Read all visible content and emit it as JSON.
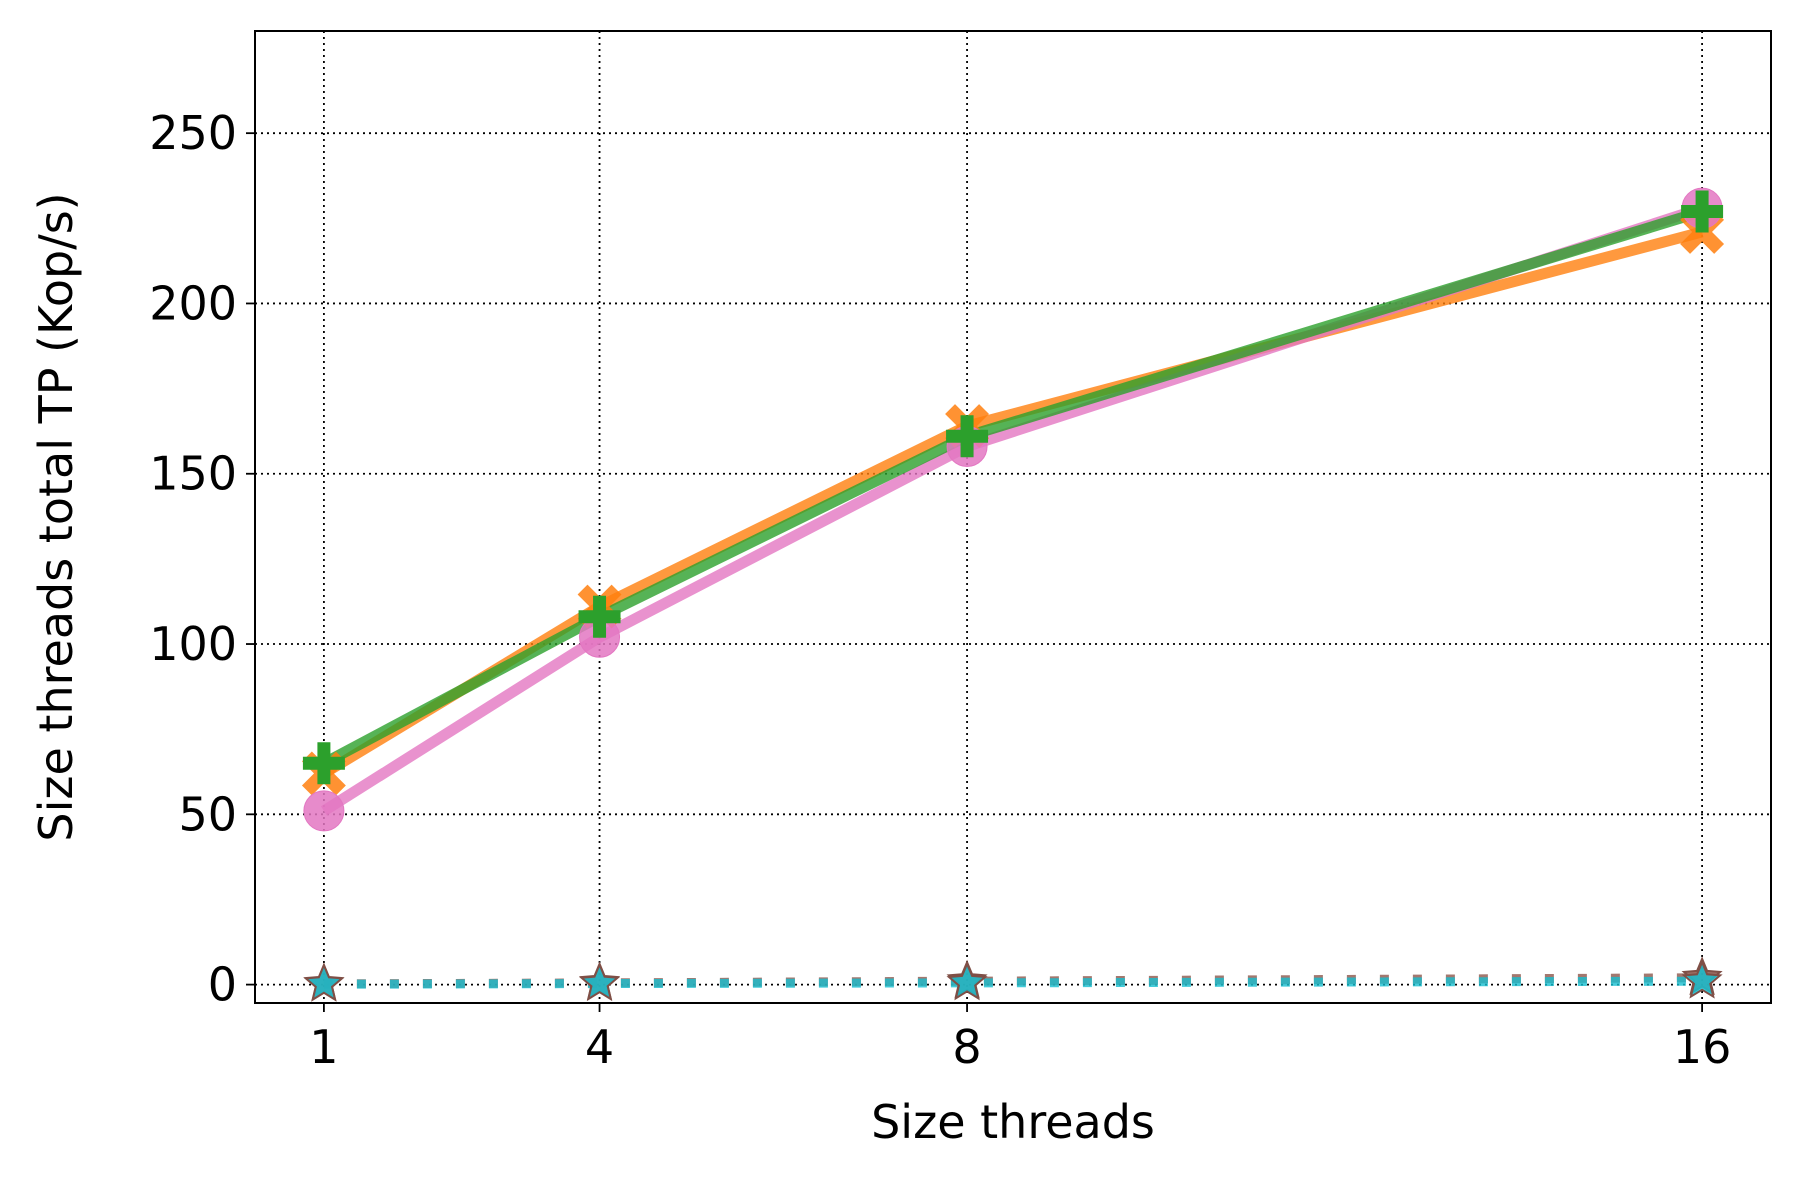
{
  "chart_data": {
    "type": "line",
    "x": [
      1,
      4,
      8,
      16
    ],
    "xlabel": "Size threads",
    "ylabel": "Size threads total TP (Kop/s)",
    "series": [
      {
        "color": "#ff7f0e",
        "marker": "x",
        "linestyle": "solid",
        "values": [
          62,
          111,
          164,
          221
        ]
      },
      {
        "color": "#e377c2",
        "marker": "circle",
        "linestyle": "solid",
        "values": [
          51,
          102,
          158,
          228
        ]
      },
      {
        "color": "#2ca02c",
        "marker": "plus",
        "linestyle": "solid",
        "values": [
          65,
          108,
          161,
          227
        ]
      },
      {
        "color": "#8c564b",
        "marker": "star",
        "linestyle": "dotted",
        "values": [
          0.2,
          0.5,
          1,
          2
        ]
      },
      {
        "color": "#17becf",
        "marker": "star",
        "linestyle": "dotted",
        "values": [
          0.1,
          0.3,
          0.5,
          1
        ]
      }
    ],
    "xlim": [
      0.25,
      16.75
    ],
    "xticks": [
      1,
      4,
      8,
      16
    ],
    "ylim": [
      -5.4,
      280
    ],
    "yticks": [
      0,
      50,
      100,
      150,
      200,
      250
    ],
    "grid": true
  }
}
